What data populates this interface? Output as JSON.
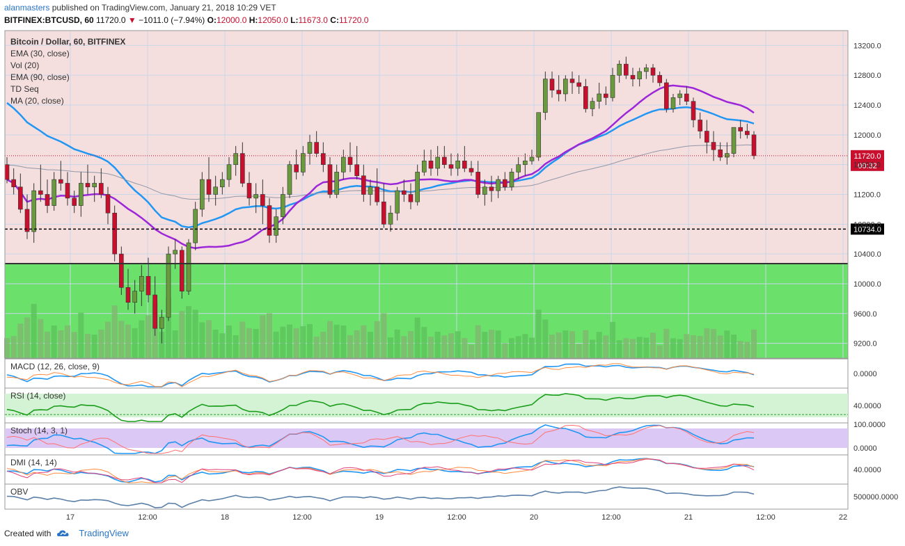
{
  "header": {
    "user": "alanmasters",
    "published_text": "published on TradingView.com, January 21, 2018 10:29 VET",
    "symbol": "BITFINEX:BTCUSD, 60",
    "last": "11720.0",
    "change": "−1011.0 (−7.94%)",
    "o_label": "O:",
    "o": "12000.0",
    "h_label": "H:",
    "h": "12050.0",
    "l_label": "L:",
    "l": "11673.0",
    "c_label": "C:",
    "c": "11720.0"
  },
  "footer": {
    "created_with": "Created with",
    "brand": "TradingView"
  },
  "colors": {
    "up": "#6a9a3e",
    "down": "#c8102e",
    "bg_red": "#f5dede",
    "bg_green": "#6be06b",
    "ema30": "#2196f3",
    "ma20": "#9c27d8",
    "ema90": "#8f98a8",
    "price_tag": "#c8102e"
  },
  "chart_data": {
    "type": "candlestick",
    "title": "Bitcoin / Dollar, 60, BITFINEX",
    "legend": [
      "EMA (30, close)",
      "Vol (20)",
      "EMA (90, close)",
      "TD Seq",
      "MA (20, close)"
    ],
    "price_axis": {
      "min": 9000,
      "max": 13400,
      "ticks": [
        13200,
        12800,
        12400,
        12000,
        11600,
        11200,
        10800,
        10400,
        10000,
        9600,
        9200
      ]
    },
    "time_axis": [
      "17",
      "12:00",
      "18",
      "12:00",
      "19",
      "12:00",
      "20",
      "12:00",
      "21",
      "12:00",
      "22"
    ],
    "horizontal_lines": [
      {
        "label": "10734.0",
        "value": 10734,
        "style": "dashed",
        "color": "#000000"
      },
      {
        "label": "11720.0",
        "value": 11720,
        "style": "dotted",
        "color": "#c8102e",
        "countdown": "00:32"
      },
      {
        "value": 10270,
        "style": "solid",
        "color": "#333333",
        "note": "boundary between red zone above and green zone below"
      }
    ],
    "candles": [
      [
        11600,
        11700,
        11350,
        11400
      ],
      [
        11400,
        11550,
        11200,
        11300
      ],
      [
        11300,
        11480,
        10950,
        11000
      ],
      [
        11000,
        11200,
        10600,
        10700
      ],
      [
        10700,
        11350,
        10550,
        11250
      ],
      [
        11250,
        11600,
        11100,
        11200
      ],
      [
        11200,
        11400,
        10950,
        11050
      ],
      [
        11050,
        11500,
        10980,
        11400
      ],
      [
        11400,
        11650,
        11250,
        11350
      ],
      [
        11350,
        11500,
        11050,
        11150
      ],
      [
        11150,
        11250,
        10950,
        11050
      ],
      [
        11050,
        11500,
        10900,
        11350
      ],
      [
        11350,
        11600,
        11200,
        11300
      ],
      [
        11300,
        11450,
        11100,
        11350
      ],
      [
        11350,
        11550,
        11150,
        11200
      ],
      [
        11200,
        11300,
        10800,
        10950
      ],
      [
        10950,
        11050,
        10300,
        10400
      ],
      [
        10400,
        10500,
        9850,
        9950
      ],
      [
        9950,
        10200,
        9650,
        9750
      ],
      [
        9750,
        10050,
        9600,
        9900
      ],
      [
        9900,
        10250,
        9700,
        10100
      ],
      [
        10100,
        10350,
        9750,
        9850
      ],
      [
        9850,
        10100,
        9300,
        9400
      ],
      [
        9400,
        9650,
        9200,
        9550
      ],
      [
        9550,
        10500,
        9500,
        10400
      ],
      [
        10400,
        10600,
        10200,
        10450
      ],
      [
        10450,
        10500,
        9800,
        9900
      ],
      [
        9900,
        10600,
        9850,
        10550
      ],
      [
        10550,
        11100,
        10450,
        11000
      ],
      [
        11000,
        11500,
        10900,
        11400
      ],
      [
        11400,
        11700,
        11100,
        11200
      ],
      [
        11200,
        11450,
        11050,
        11300
      ],
      [
        11300,
        11500,
        11200,
        11400
      ],
      [
        11400,
        11700,
        11300,
        11600
      ],
      [
        11600,
        11850,
        11450,
        11750
      ],
      [
        11750,
        11900,
        11300,
        11350
      ],
      [
        11350,
        11500,
        11050,
        11150
      ],
      [
        11150,
        11350,
        10950,
        11200
      ],
      [
        11200,
        11400,
        10800,
        11050
      ],
      [
        11050,
        11150,
        10550,
        10650
      ],
      [
        10650,
        11000,
        10550,
        10900
      ],
      [
        10900,
        11300,
        10800,
        11200
      ],
      [
        11200,
        11650,
        11150,
        11600
      ],
      [
        11600,
        11800,
        11400,
        11500
      ],
      [
        11500,
        11850,
        11450,
        11750
      ],
      [
        11750,
        12000,
        11600,
        11900
      ],
      [
        11900,
        12050,
        11700,
        11750
      ],
      [
        11750,
        11900,
        11500,
        11600
      ],
      [
        11600,
        11700,
        11150,
        11200
      ],
      [
        11200,
        11600,
        11150,
        11500
      ],
      [
        11500,
        11800,
        11400,
        11700
      ],
      [
        11700,
        11900,
        11500,
        11600
      ],
      [
        11600,
        11850,
        11400,
        11450
      ],
      [
        11450,
        11600,
        11100,
        11200
      ],
      [
        11200,
        11400,
        11050,
        11300
      ],
      [
        11300,
        11550,
        11050,
        11100
      ],
      [
        11100,
        11350,
        10750,
        10800
      ],
      [
        10800,
        11050,
        10700,
        10950
      ],
      [
        10950,
        11300,
        10850,
        11250
      ],
      [
        11250,
        11400,
        11100,
        11200
      ],
      [
        11200,
        11350,
        11000,
        11100
      ],
      [
        11100,
        11600,
        11050,
        11500
      ],
      [
        11500,
        11800,
        11450,
        11650
      ],
      [
        11650,
        11800,
        11450,
        11550
      ],
      [
        11550,
        11850,
        11450,
        11700
      ],
      [
        11700,
        11850,
        11550,
        11600
      ],
      [
        11600,
        11750,
        11450,
        11550
      ],
      [
        11550,
        11750,
        11450,
        11650
      ],
      [
        11650,
        11850,
        11500,
        11550
      ],
      [
        11550,
        11650,
        11450,
        11500
      ],
      [
        11500,
        11650,
        11150,
        11200
      ],
      [
        11200,
        11400,
        11050,
        11300
      ],
      [
        11300,
        11450,
        11100,
        11250
      ],
      [
        11250,
        11450,
        11150,
        11400
      ],
      [
        11400,
        11500,
        11250,
        11300
      ],
      [
        11300,
        11550,
        11250,
        11500
      ],
      [
        11500,
        11700,
        11400,
        11600
      ],
      [
        11600,
        11750,
        11450,
        11650
      ],
      [
        11650,
        11800,
        11600,
        11700
      ],
      [
        11700,
        12300,
        11650,
        12300
      ],
      [
        12300,
        12850,
        12200,
        12750
      ],
      [
        12750,
        12850,
        12500,
        12600
      ],
      [
        12600,
        12800,
        12450,
        12550
      ],
      [
        12550,
        12800,
        12450,
        12750
      ],
      [
        12750,
        12850,
        12550,
        12700
      ],
      [
        12700,
        12800,
        12550,
        12650
      ],
      [
        12650,
        12750,
        12300,
        12350
      ],
      [
        12350,
        12500,
        12250,
        12450
      ],
      [
        12450,
        12700,
        12350,
        12550
      ],
      [
        12550,
        12650,
        12400,
        12500
      ],
      [
        12500,
        12900,
        12450,
        12800
      ],
      [
        12800,
        13000,
        12700,
        12950
      ],
      [
        12950,
        13050,
        12750,
        12800
      ],
      [
        12800,
        12900,
        12650,
        12750
      ],
      [
        12750,
        12900,
        12650,
        12850
      ],
      [
        12850,
        12950,
        12750,
        12900
      ],
      [
        12900,
        12950,
        12700,
        12800
      ],
      [
        12800,
        12850,
        12650,
        12700
      ],
      [
        12700,
        12750,
        12300,
        12350
      ],
      [
        12350,
        12550,
        12300,
        12500
      ],
      [
        12500,
        12600,
        12400,
        12550
      ],
      [
        12550,
        12650,
        12400,
        12450
      ],
      [
        12450,
        12500,
        12100,
        12200
      ],
      [
        12200,
        12300,
        11950,
        12050
      ],
      [
        12050,
        12200,
        11750,
        11900
      ],
      [
        11900,
        12050,
        11650,
        11800
      ],
      [
        11800,
        11900,
        11650,
        11700
      ],
      [
        11700,
        11900,
        11600,
        11750
      ],
      [
        11750,
        12100,
        11700,
        12100
      ],
      [
        12100,
        12200,
        11950,
        12050
      ],
      [
        12050,
        12150,
        11950,
        12000
      ],
      [
        12000,
        12050,
        11673,
        11720
      ]
    ]
  },
  "indicators": {
    "macd": {
      "label": "MACD (12, 26, close, 9)",
      "tick": "0.0000"
    },
    "rsi": {
      "label": "RSI (14, close)",
      "tick": "40.0000"
    },
    "stoch": {
      "label": "Stoch (14, 3, 1)",
      "ticks": [
        "100.0000",
        "0.0000"
      ]
    },
    "dmi": {
      "label": "DMI (14, 14)",
      "tick": "40.0000"
    },
    "obv": {
      "label": "OBV",
      "tick": "500000.0000"
    }
  }
}
